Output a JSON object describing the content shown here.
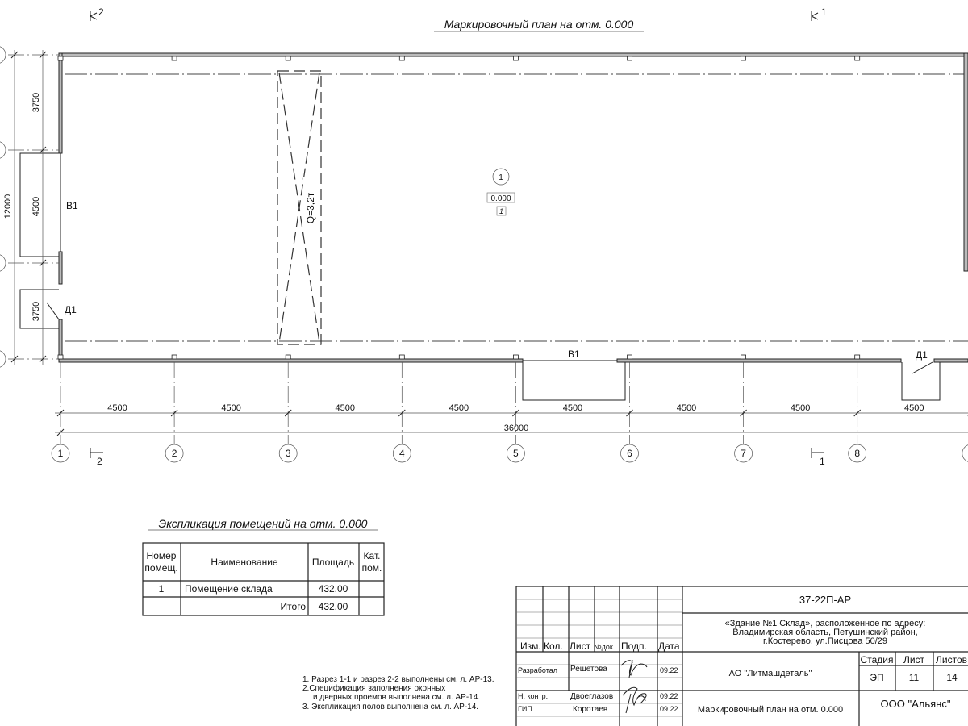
{
  "plan": {
    "title": "Маркировочный план на отм. 0.000",
    "section_marks": {
      "top_left": "2",
      "top_right": "1",
      "bottom_left": "2",
      "bottom_right": "1"
    },
    "axes_letters_visible": false,
    "axes_numbers": [
      "1",
      "2",
      "3",
      "4",
      "5",
      "6",
      "7",
      "8"
    ],
    "span_dims": [
      "4500",
      "4500",
      "4500",
      "4500",
      "4500",
      "4500",
      "4500",
      "4500"
    ],
    "total_length": "36000",
    "left_dims": {
      "total": "12000",
      "parts": [
        "3750",
        "4500",
        "3750"
      ]
    },
    "openings": {
      "gate_left": "В1",
      "door_left": "Д1",
      "gate_bottom": "В1",
      "door_bottom": "Д1"
    },
    "crane_label": "Q=3,2т",
    "room": {
      "number": "1",
      "level": "0.000",
      "floor_type": "1"
    }
  },
  "explication": {
    "title": "Экспликация помещений на отм. 0.000",
    "headers": {
      "number_1": "Номер",
      "number_2": "помещ.",
      "name": "Наименование",
      "area": "Площадь",
      "cat_1": "Кат.",
      "cat_2": "пом."
    },
    "rows": [
      {
        "number": "1",
        "name": "Помещение склада",
        "area": "432.00",
        "cat": ""
      }
    ],
    "total_label": "Итого",
    "total_area": "432.00"
  },
  "notes": [
    "1. Разрез 1-1 и разрез 2-2 выполнены см. л. АР-13.",
    "2.Спецификация заполнения оконных",
    "и дверных проемов выполнена см. л. АР-14.",
    "3. Экспликация полов выполнена см. л. АР-14."
  ],
  "title_block": {
    "code": "37-22П-АР",
    "object_1": "«Здание №1 Склад», расположенное по адресу:",
    "object_2": "Владимирская область, Петушинский район,",
    "object_3": "г.Костерево, ул.Писцова 50/29",
    "headers": {
      "izm": "Изм.",
      "kol": "Кол.",
      "list": "Лист",
      "ndok": "№док.",
      "podp": "Подп.",
      "data": "Дата"
    },
    "people": [
      {
        "role": "Разработал",
        "name": "Решетова",
        "date": "09.22"
      },
      {
        "role": "Н. контр.",
        "name": "Двоеглазов",
        "date": "09.22"
      },
      {
        "role": "ГИП",
        "name": "Коротаев",
        "date": "09.22"
      }
    ],
    "customer": "АО \"Литмашдеталь\"",
    "stage_label": "Стадия",
    "sheet_label": "Лист",
    "sheets_label": "Листов",
    "stage": "ЭП",
    "sheet": "11",
    "sheets": "14",
    "sheet_title": "Маркировочный план на отм. 0.000",
    "company": "ООО \"Альянс\""
  }
}
